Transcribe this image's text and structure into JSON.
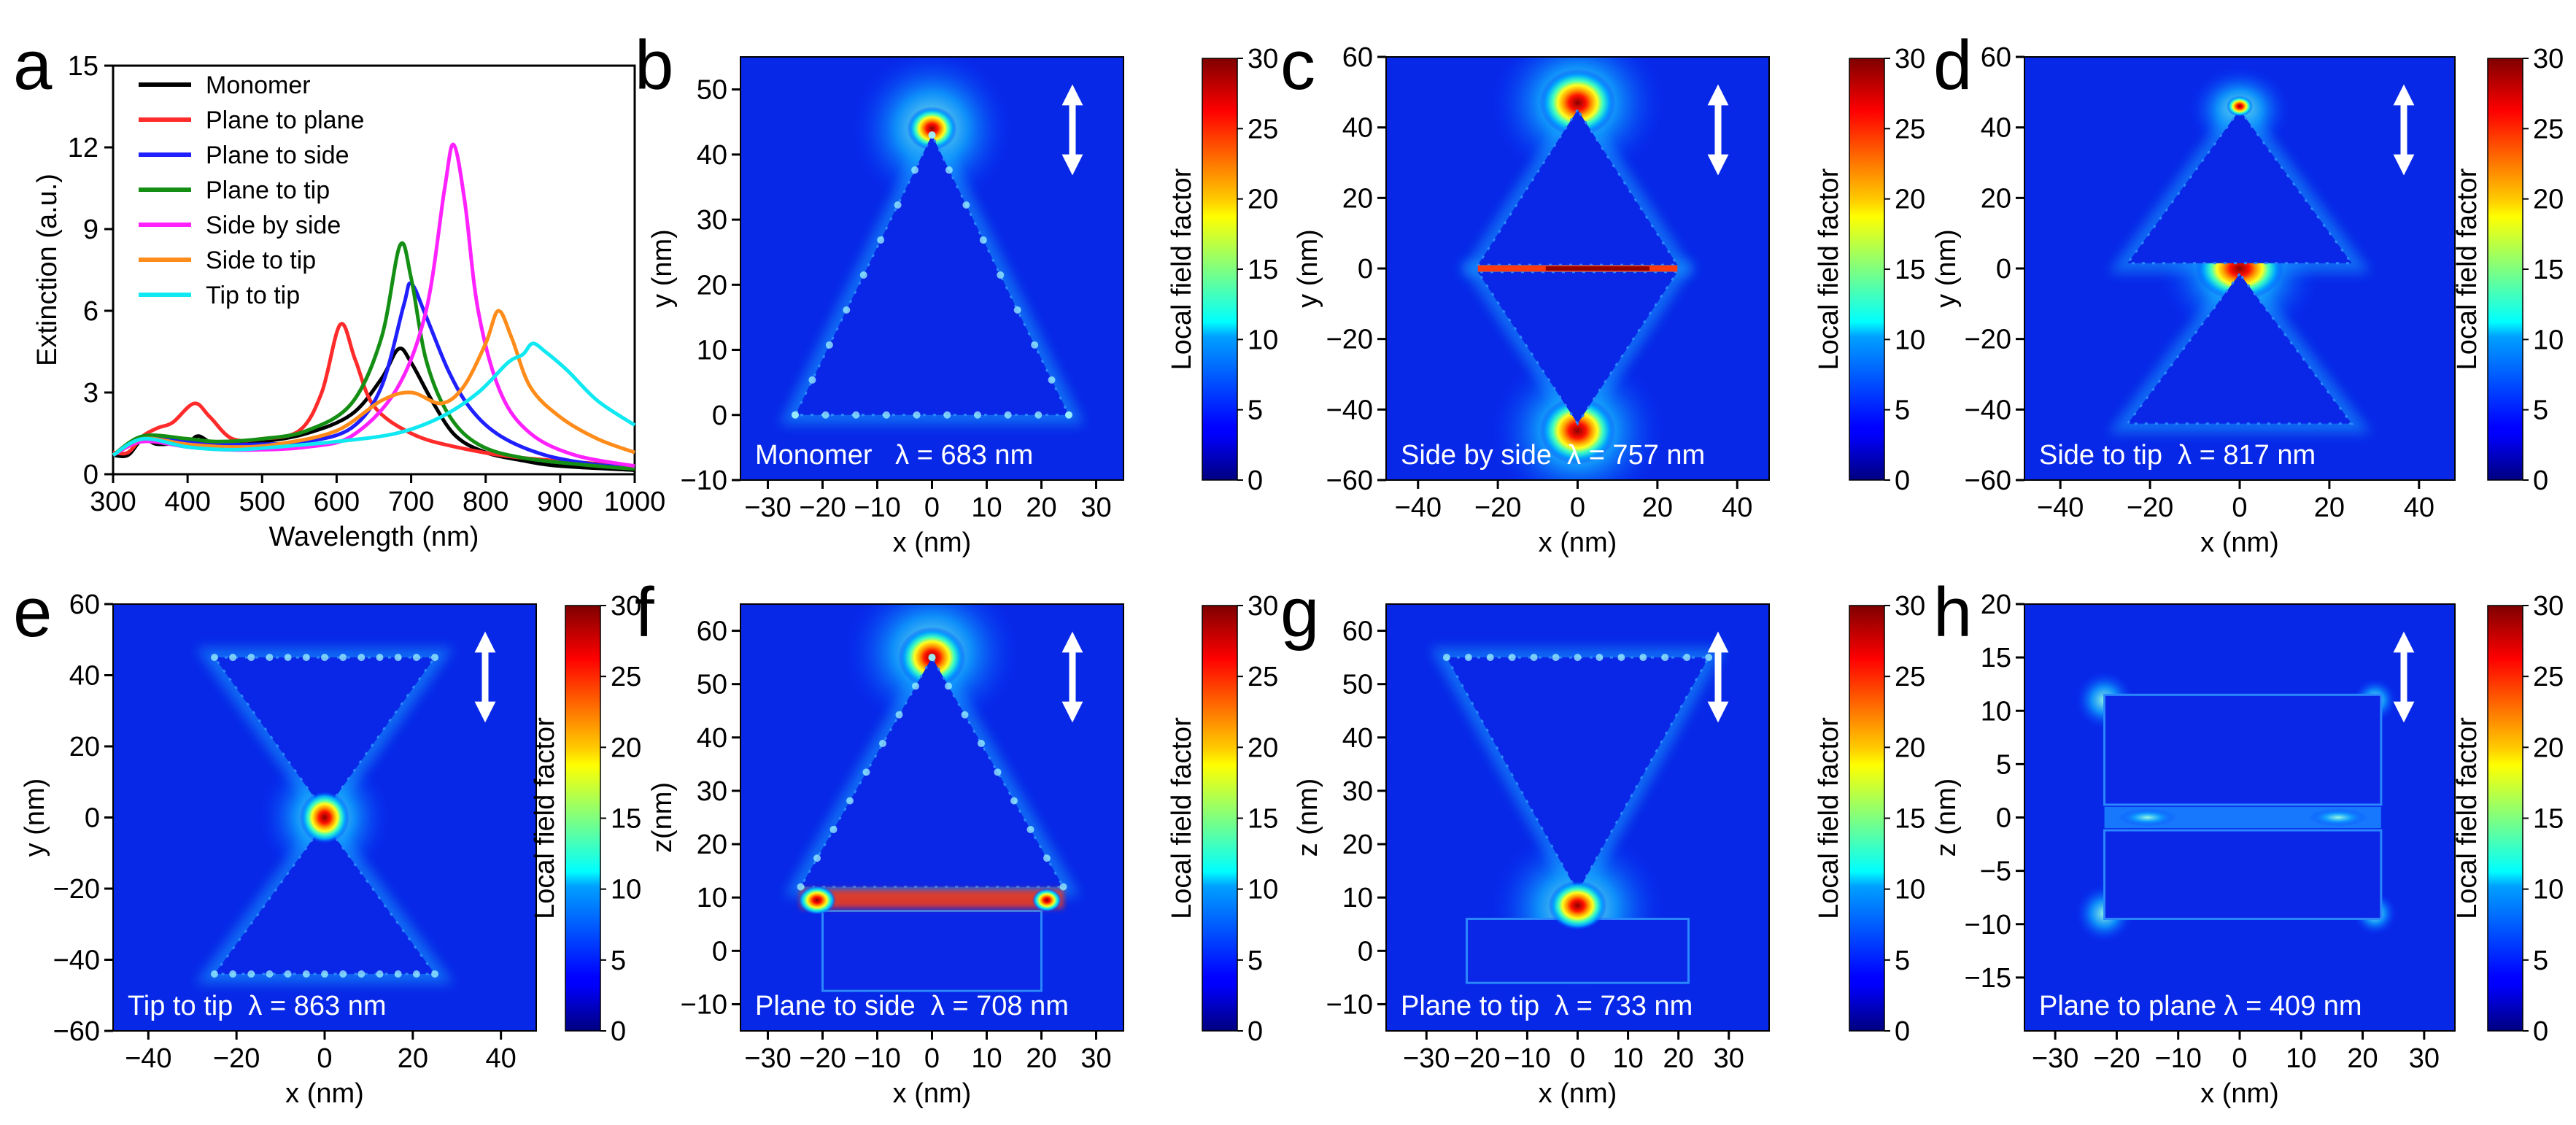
{
  "figure": {
    "colormap_ticks": [
      "0",
      "5",
      "10",
      "15",
      "20",
      "25",
      "30"
    ]
  },
  "panels": [
    {
      "letter": "a"
    },
    {
      "letter": "b"
    },
    {
      "letter": "c"
    },
    {
      "letter": "d"
    },
    {
      "letter": "e"
    },
    {
      "letter": "f"
    },
    {
      "letter": "g"
    },
    {
      "letter": "h"
    }
  ],
  "chart_data": [
    {
      "panel": "a",
      "type": "line",
      "xlabel": "Wavelength (nm)",
      "ylabel": "Extinction (a.u.)",
      "xlim": [
        300,
        1000
      ],
      "ylim": [
        0,
        15
      ],
      "xticks": [
        300,
        400,
        500,
        600,
        700,
        800,
        900,
        1000
      ],
      "yticks": [
        0,
        3,
        6,
        9,
        12,
        15
      ],
      "legend_position": "top-left",
      "series": [
        {
          "name": "Monomer",
          "color": "#000000",
          "points": [
            [
              300,
              0.7
            ],
            [
              320,
              0.7
            ],
            [
              340,
              1.3
            ],
            [
              360,
              1.1
            ],
            [
              400,
              1.2
            ],
            [
              415,
              1.4
            ],
            [
              440,
              1.1
            ],
            [
              500,
              1.2
            ],
            [
              560,
              1.5
            ],
            [
              620,
              2.2
            ],
            [
              660,
              3.5
            ],
            [
              683,
              4.6
            ],
            [
              700,
              4.1
            ],
            [
              730,
              2.6
            ],
            [
              760,
              1.4
            ],
            [
              800,
              0.8
            ],
            [
              850,
              0.5
            ],
            [
              900,
              0.3
            ],
            [
              1000,
              0.15
            ]
          ]
        },
        {
          "name": "Plane to plane",
          "color": "#ff2a2a",
          "points": [
            [
              300,
              0.8
            ],
            [
              320,
              0.8
            ],
            [
              340,
              1.4
            ],
            [
              360,
              1.7
            ],
            [
              380,
              1.9
            ],
            [
              409,
              2.6
            ],
            [
              430,
              2.1
            ],
            [
              460,
              1.3
            ],
            [
              500,
              1.3
            ],
            [
              550,
              1.6
            ],
            [
              580,
              3.0
            ],
            [
              605,
              5.5
            ],
            [
              625,
              4.2
            ],
            [
              650,
              2.5
            ],
            [
              700,
              1.5
            ],
            [
              760,
              1.0
            ],
            [
              850,
              0.6
            ],
            [
              1000,
              0.3
            ]
          ]
        },
        {
          "name": "Plane to side",
          "color": "#1f1fff",
          "points": [
            [
              300,
              0.7
            ],
            [
              340,
              1.3
            ],
            [
              400,
              1.2
            ],
            [
              440,
              1.1
            ],
            [
              500,
              1.1
            ],
            [
              560,
              1.2
            ],
            [
              620,
              1.7
            ],
            [
              660,
              3.2
            ],
            [
              690,
              6.2
            ],
            [
              700,
              7.0
            ],
            [
              720,
              5.8
            ],
            [
              750,
              3.8
            ],
            [
              780,
              2.4
            ],
            [
              820,
              1.4
            ],
            [
              880,
              0.7
            ],
            [
              950,
              0.35
            ],
            [
              1000,
              0.25
            ]
          ]
        },
        {
          "name": "Plane to tip",
          "color": "#148f14",
          "points": [
            [
              300,
              0.7
            ],
            [
              340,
              1.4
            ],
            [
              400,
              1.3
            ],
            [
              440,
              1.2
            ],
            [
              500,
              1.3
            ],
            [
              560,
              1.6
            ],
            [
              620,
              2.6
            ],
            [
              660,
              5.0
            ],
            [
              685,
              8.4
            ],
            [
              700,
              7.2
            ],
            [
              720,
              4.2
            ],
            [
              750,
              2.2
            ],
            [
              790,
              1.1
            ],
            [
              850,
              0.6
            ],
            [
              950,
              0.3
            ],
            [
              1000,
              0.2
            ]
          ]
        },
        {
          "name": "Side by side",
          "color": "#ff22ff",
          "points": [
            [
              300,
              0.7
            ],
            [
              340,
              1.2
            ],
            [
              400,
              1.0
            ],
            [
              450,
              0.9
            ],
            [
              500,
              0.9
            ],
            [
              560,
              1.0
            ],
            [
              620,
              1.4
            ],
            [
              680,
              3.1
            ],
            [
              720,
              6.0
            ],
            [
              745,
              10.5
            ],
            [
              757,
              12.1
            ],
            [
              772,
              10.0
            ],
            [
              790,
              6.0
            ],
            [
              820,
              3.0
            ],
            [
              860,
              1.5
            ],
            [
              920,
              0.7
            ],
            [
              1000,
              0.3
            ]
          ]
        },
        {
          "name": "Side to tip",
          "color": "#ff8c1a",
          "points": [
            [
              300,
              0.7
            ],
            [
              340,
              1.3
            ],
            [
              400,
              1.1
            ],
            [
              460,
              1.0
            ],
            [
              520,
              1.1
            ],
            [
              600,
              1.6
            ],
            [
              660,
              2.7
            ],
            [
              700,
              3.0
            ],
            [
              740,
              2.6
            ],
            [
              770,
              3.2
            ],
            [
              800,
              4.8
            ],
            [
              817,
              6.0
            ],
            [
              835,
              5.0
            ],
            [
              860,
              3.2
            ],
            [
              900,
              2.1
            ],
            [
              950,
              1.3
            ],
            [
              1000,
              0.8
            ]
          ]
        },
        {
          "name": "Tip to tip",
          "color": "#10e8f2",
          "points": [
            [
              300,
              0.7
            ],
            [
              340,
              1.3
            ],
            [
              400,
              1.0
            ],
            [
              460,
              0.9
            ],
            [
              520,
              1.0
            ],
            [
              600,
              1.2
            ],
            [
              680,
              1.5
            ],
            [
              740,
              2.1
            ],
            [
              790,
              3.0
            ],
            [
              830,
              4.1
            ],
            [
              850,
              4.4
            ],
            [
              863,
              4.8
            ],
            [
              880,
              4.5
            ],
            [
              910,
              3.8
            ],
            [
              950,
              2.7
            ],
            [
              1000,
              1.8
            ]
          ]
        }
      ]
    },
    {
      "panel": "b",
      "type": "heatmap",
      "annotation": "Monomer   λ = 683 nm",
      "xlabel": "x (nm)",
      "ylabel": "y (nm)",
      "xlim": [
        -35,
        35
      ],
      "ylim": [
        -10,
        55
      ],
      "xticks": [
        "−30",
        "−20",
        "−10",
        "0",
        "10",
        "20",
        "30"
      ],
      "yticks": [
        "−10",
        "0",
        "10",
        "20",
        "30",
        "40",
        "50"
      ],
      "colorbar_label": "Local field factor",
      "clim": [
        0,
        30
      ]
    },
    {
      "panel": "c",
      "type": "heatmap",
      "annotation": "Side by side  λ = 757 nm",
      "xlabel": "x (nm)",
      "ylabel": "y (nm)",
      "xlim": [
        -48,
        48
      ],
      "ylim": [
        -60,
        60
      ],
      "xticks": [
        "−40",
        "−20",
        "0",
        "20",
        "40"
      ],
      "yticks": [
        "−60",
        "−40",
        "−20",
        "0",
        "20",
        "40",
        "60"
      ],
      "colorbar_label": "Local field factor",
      "clim": [
        0,
        30
      ]
    },
    {
      "panel": "d",
      "type": "heatmap",
      "annotation": "Side to tip  λ = 817 nm",
      "xlabel": "x (nm)",
      "ylabel": "y (nm)",
      "xlim": [
        -48,
        48
      ],
      "ylim": [
        -60,
        60
      ],
      "xticks": [
        "−40",
        "−20",
        "0",
        "20",
        "40"
      ],
      "yticks": [
        "−60",
        "−40",
        "−20",
        "0",
        "20",
        "40",
        "60"
      ],
      "colorbar_label": "Local field factor",
      "clim": [
        0,
        30
      ]
    },
    {
      "panel": "e",
      "type": "heatmap",
      "annotation": "Tip to tip  λ = 863 nm",
      "xlabel": "x (nm)",
      "ylabel": "y (nm)",
      "xlim": [
        -48,
        48
      ],
      "ylim": [
        -60,
        60
      ],
      "xticks": [
        "−40",
        "−20",
        "0",
        "20",
        "40"
      ],
      "yticks": [
        "−60",
        "−40",
        "−20",
        "0",
        "20",
        "40",
        "60"
      ],
      "colorbar_label": "Local field factor",
      "clim": [
        0,
        30
      ]
    },
    {
      "panel": "f",
      "type": "heatmap",
      "annotation": "Plane to side  λ = 708 nm",
      "xlabel": "x (nm)",
      "ylabel": "z(nm)",
      "xlim": [
        -35,
        35
      ],
      "ylim": [
        -15,
        65
      ],
      "xticks": [
        "−30",
        "−20",
        "−10",
        "0",
        "10",
        "20",
        "30"
      ],
      "yticks": [
        "−10",
        "0",
        "10",
        "20",
        "30",
        "40",
        "50",
        "60"
      ],
      "colorbar_label": "Local field factor",
      "clim": [
        0,
        30
      ]
    },
    {
      "panel": "g",
      "type": "heatmap",
      "annotation": "Plane to tip  λ = 733 nm",
      "xlabel": "x (nm)",
      "ylabel": "z (nm)",
      "xlim": [
        -38,
        38
      ],
      "ylim": [
        -15,
        65
      ],
      "xticks": [
        "−30",
        "−20",
        "−10",
        "0",
        "10",
        "20",
        "30"
      ],
      "yticks": [
        "−10",
        "0",
        "10",
        "20",
        "30",
        "40",
        "50",
        "60"
      ],
      "colorbar_label": "Local field factor",
      "clim": [
        0,
        30
      ]
    },
    {
      "panel": "h",
      "type": "heatmap",
      "annotation": "Plane to plane λ = 409 nm",
      "xlabel": "x (nm)",
      "ylabel": "z (nm)",
      "xlim": [
        -35,
        35
      ],
      "ylim": [
        -20,
        20
      ],
      "xticks": [
        "−30",
        "−20",
        "−10",
        "0",
        "10",
        "20",
        "30"
      ],
      "yticks": [
        "−15",
        "−10",
        "−5",
        "0",
        "5",
        "10",
        "15",
        "20"
      ],
      "colorbar_label": "Local field factor",
      "clim": [
        0,
        30
      ]
    }
  ]
}
